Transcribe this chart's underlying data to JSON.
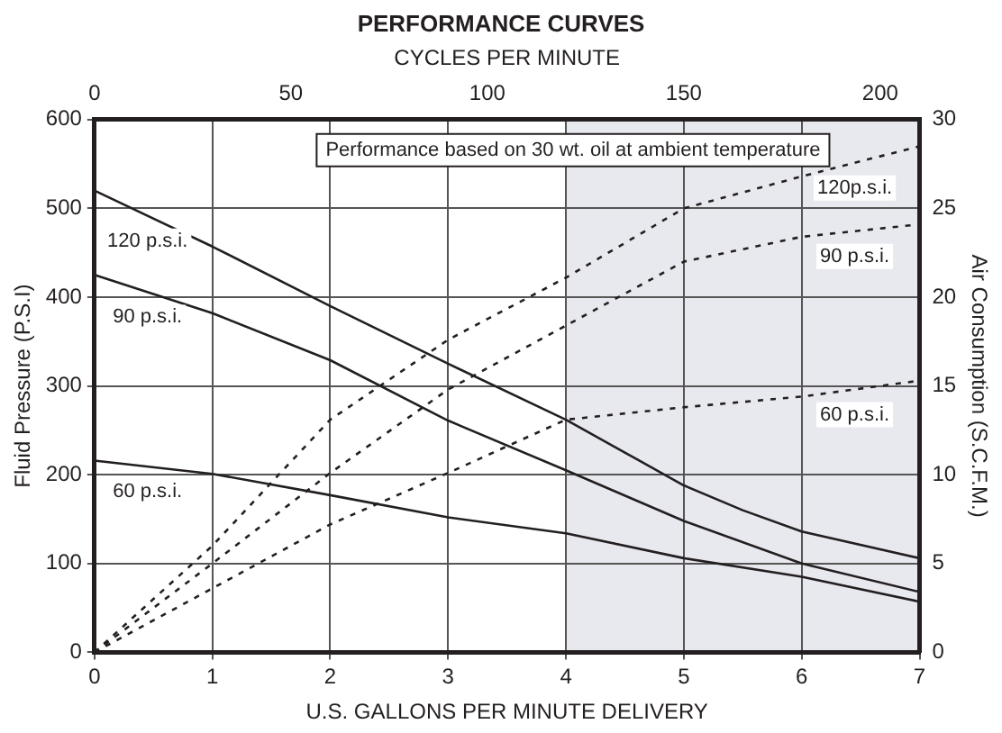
{
  "chart_data": {
    "type": "line",
    "title": "PERFORMANCE CURVES",
    "xlabel": "U.S. GALLONS PER MINUTE DELIVERY",
    "x2label": "CYCLES PER MINUTE",
    "ylabel": "Fluid Pressure (P.S.I)",
    "y2label": "Air Consumption (S.C.F.M.)",
    "xlim": [
      0,
      7
    ],
    "xticks": [
      0,
      1,
      2,
      3,
      4,
      5,
      6,
      7
    ],
    "x2lim": [
      0,
      210
    ],
    "x2ticks": [
      0,
      50,
      100,
      150,
      200
    ],
    "ylim": [
      0,
      600
    ],
    "yticks": [
      0,
      100,
      200,
      300,
      400,
      500,
      600
    ],
    "y2lim": [
      0,
      30
    ],
    "y2ticks": [
      0,
      5,
      10,
      15,
      20,
      25,
      30
    ],
    "grid": true,
    "legend": false,
    "marker": "none",
    "bands": [
      {
        "axis": "x",
        "from": 4,
        "to": 7,
        "color": "#e8e9ef"
      }
    ],
    "annotations": [
      "Performance based on 30 wt. oil at ambient temperature"
    ],
    "series": [
      {
        "name": "120 p.s.i.",
        "color": "#231f20",
        "line_style": "solid",
        "x": [
          0,
          1,
          2,
          3,
          4,
          4.5,
          5,
          5.5,
          6,
          7
        ],
        "values": [
          520,
          457,
          390,
          325,
          262,
          225,
          188,
          160,
          136,
          106
        ]
      },
      {
        "name": "90 p.s.i.",
        "color": "#231f20",
        "line_style": "solid",
        "x": [
          0,
          1,
          2,
          3,
          4,
          5,
          6,
          7
        ],
        "values": [
          425,
          382,
          329,
          261,
          205,
          148,
          100,
          68
        ]
      },
      {
        "name": "60 p.s.i.",
        "color": "#231f20",
        "line_style": "solid",
        "x": [
          0,
          1,
          2,
          3,
          4,
          5,
          6,
          7
        ],
        "values": [
          216,
          201,
          177,
          152,
          134,
          106,
          85,
          57
        ]
      },
      {
        "name": "120p.s.i.",
        "color": "#231f20",
        "line_style": "dotted",
        "axis": "y2",
        "x": [
          0,
          1,
          2,
          3,
          4,
          5,
          6,
          7
        ],
        "values": [
          0,
          6.0,
          13.1,
          17.6,
          21.1,
          25.0,
          26.8,
          28.5
        ]
      },
      {
        "name": "90 p.s.i.",
        "color": "#231f20",
        "line_style": "dotted",
        "axis": "y2",
        "x": [
          0,
          1,
          2,
          3,
          4,
          5,
          6,
          7
        ],
        "values": [
          0,
          5.0,
          10.1,
          14.8,
          18.4,
          22.0,
          23.4,
          24.1
        ]
      },
      {
        "name": "60 p.s.i.",
        "color": "#231f20",
        "line_style": "dotted",
        "axis": "y2",
        "x": [
          0,
          1,
          2,
          3,
          4,
          5,
          6,
          7
        ],
        "values": [
          0,
          3.6,
          7.2,
          10.1,
          13.1,
          13.8,
          14.4,
          15.3
        ]
      }
    ]
  }
}
